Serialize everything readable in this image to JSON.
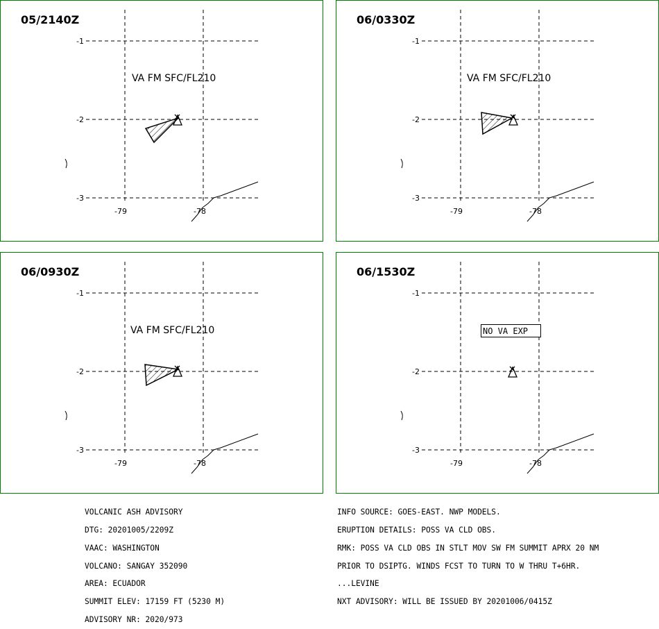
{
  "colors": {
    "frame": "#008000",
    "ink": "#000000",
    "background": "#ffffff"
  },
  "axes": {
    "lon_ticks": [
      "-79",
      "-78"
    ],
    "lat_ticks": [
      "-1",
      "-2",
      "-3"
    ]
  },
  "panels": [
    {
      "time": "05/2140Z",
      "label": "VA FM SFC/FL210",
      "ash_cloud": true,
      "no_va_text": ""
    },
    {
      "time": "06/0330Z",
      "label": "VA FM SFC/FL210",
      "ash_cloud": true,
      "no_va_text": ""
    },
    {
      "time": "06/0930Z",
      "label": "VA FM SFC/FL210",
      "ash_cloud": true,
      "no_va_text": ""
    },
    {
      "time": "06/1530Z",
      "label": "",
      "ash_cloud": false,
      "no_va_text": "NO VA EXP"
    }
  ],
  "advisory": {
    "left": [
      "VOLCANIC ASH ADVISORY",
      "DTG: 20201005/2209Z",
      "VAAC: WASHINGTON",
      "VOLCANO: SANGAY 352090",
      "AREA: ECUADOR",
      "SUMMIT ELEV: 17159 FT (5230 M)",
      "ADVISORY NR: 2020/973"
    ],
    "right": [
      "INFO SOURCE: GOES-EAST. NWP MODELS.",
      "ERUPTION DETAILS: POSS VA CLD OBS.",
      "RMK: POSS VA CLD OBS IN STLT MOV SW FM SUMMIT APRX 20 NM",
      "PRIOR TO DSIPTG. WINDS FCST TO TURN TO W THRU T+6HR.",
      "...LEVINE",
      "NXT ADVISORY: WILL BE ISSUED BY 20201006/0415Z"
    ]
  }
}
